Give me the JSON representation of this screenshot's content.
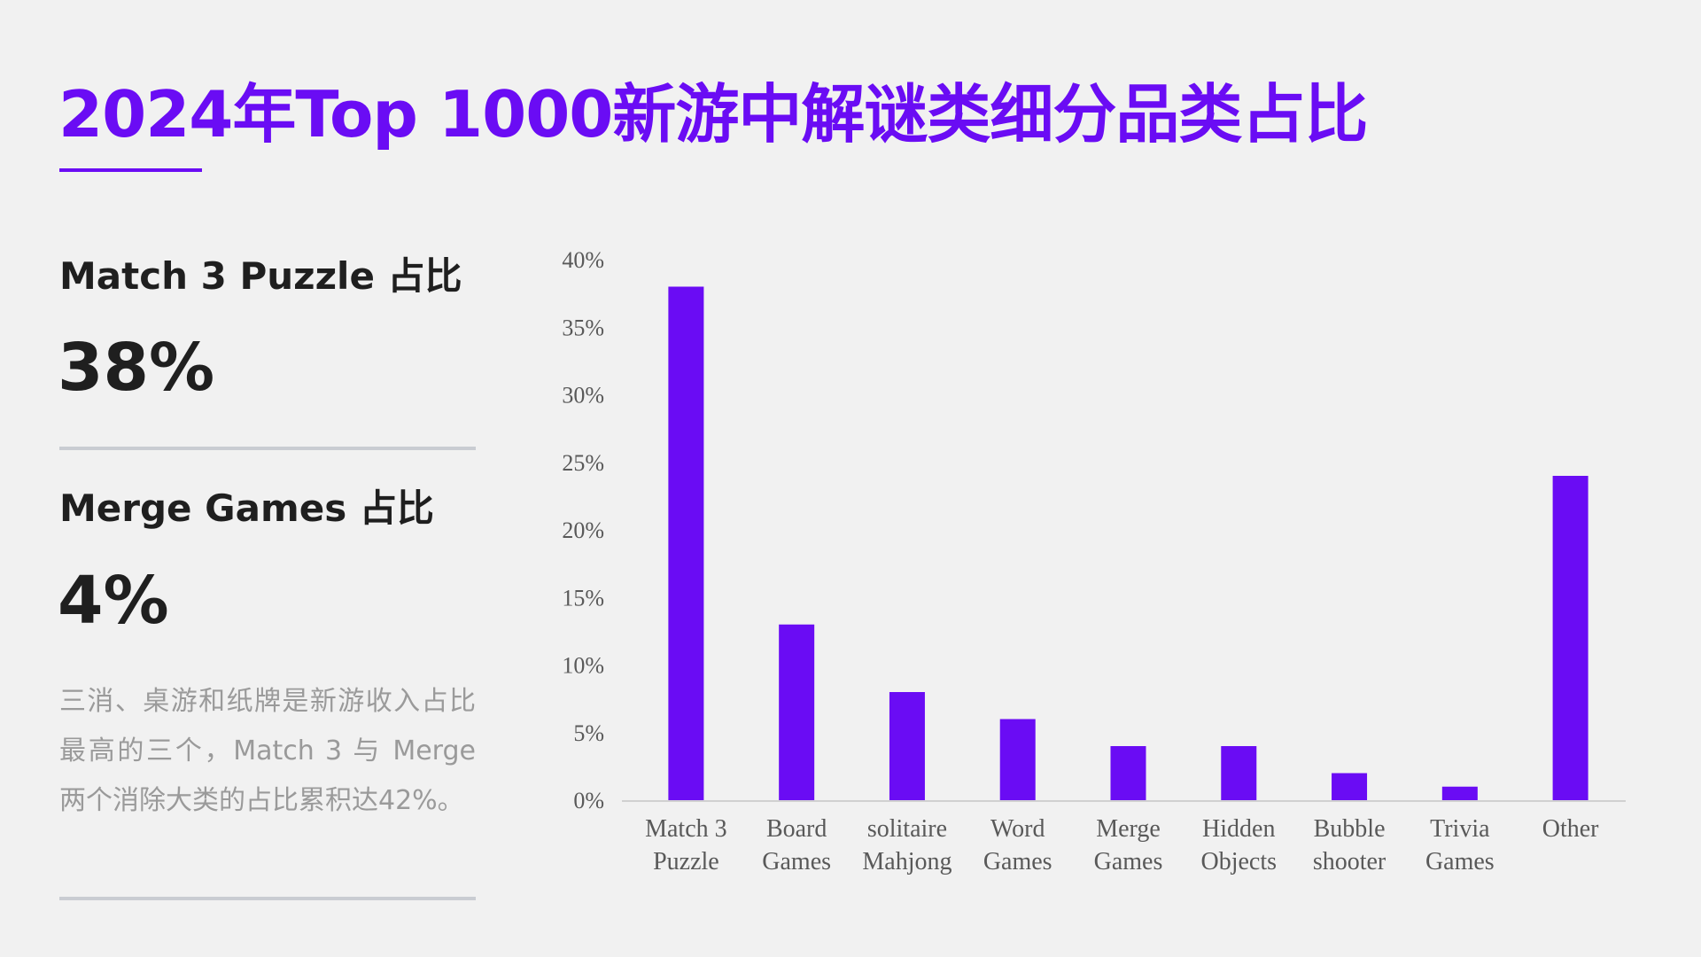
{
  "title": "2024年Top 1000新游中解谜类细分品类占比",
  "stats": [
    {
      "label": "Match 3 Puzzle 占比",
      "value": "38%"
    },
    {
      "label": "Merge Games 占比",
      "value": "4%"
    }
  ],
  "description": "三消、桌游和纸牌是新游收入占比最高的三个，Match 3 与 Merge 两个消除大类的占比累积达42%。",
  "colors": {
    "accent": "#6a0cf4",
    "bar": "#6a0cf4",
    "text": "#1f1f1f",
    "muted": "#9a9a9a"
  },
  "chart_data": {
    "type": "bar",
    "categories": [
      [
        "Match 3",
        "Puzzle"
      ],
      [
        "Board",
        "Games"
      ],
      [
        "solitaire",
        "Mahjong"
      ],
      [
        "Word",
        "Games"
      ],
      [
        "Merge",
        "Games"
      ],
      [
        "Hidden",
        "Objects"
      ],
      [
        "Bubble",
        "shooter"
      ],
      [
        "Trivia",
        "Games"
      ],
      [
        "Other"
      ]
    ],
    "values": [
      38,
      13,
      8,
      6,
      4,
      4,
      2,
      1,
      24
    ],
    "y_ticks": [
      "0%",
      "5%",
      "10%",
      "15%",
      "20%",
      "25%",
      "30%",
      "35%",
      "40%"
    ],
    "ylim": [
      0,
      40
    ],
    "grid": false,
    "title": "",
    "xlabel": "",
    "ylabel": ""
  }
}
